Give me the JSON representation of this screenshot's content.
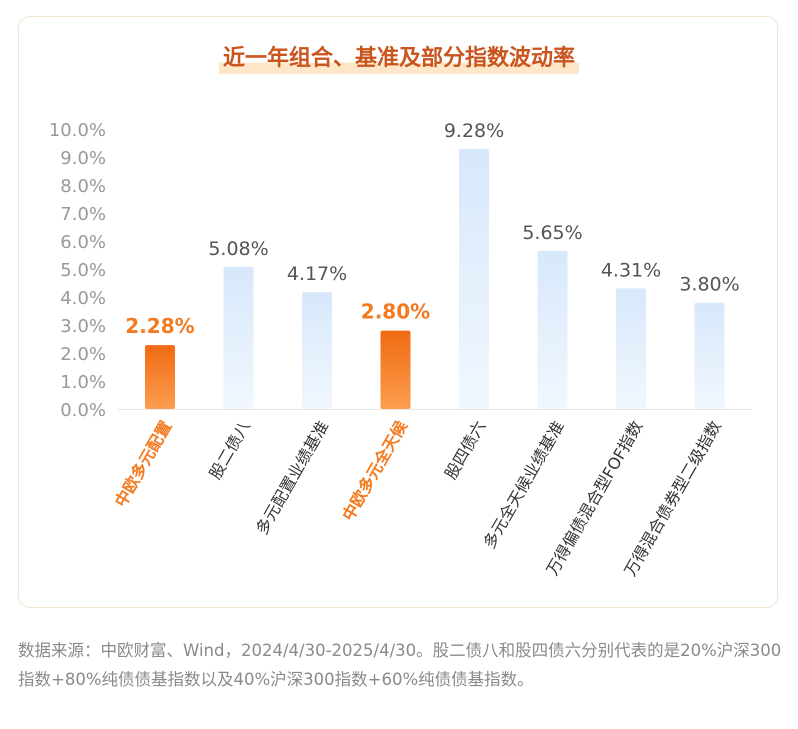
{
  "chart_data": {
    "type": "bar",
    "title": "近一年组合、基准及部分指数波动率",
    "categories": [
      "中欧多元配置",
      "股二债八",
      "多元配置业绩基准",
      "中欧多元全天候",
      "股四债六",
      "多元全天候业绩基准",
      "万得偏债混合型FOF指数",
      "万得混合债券型二级指数"
    ],
    "values": [
      2.28,
      5.08,
      4.17,
      2.8,
      9.28,
      5.65,
      4.31,
      3.8
    ],
    "value_labels": [
      "2.28%",
      "5.08%",
      "4.17%",
      "2.80%",
      "9.28%",
      "5.65%",
      "4.31%",
      "3.80%"
    ],
    "highlight": [
      true,
      false,
      false,
      true,
      false,
      false,
      false,
      false
    ],
    "yticks": [
      "0.0%",
      "1.0%",
      "2.0%",
      "3.0%",
      "4.0%",
      "5.0%",
      "6.0%",
      "7.0%",
      "8.0%",
      "9.0%",
      "10.0%"
    ],
    "ylim": [
      0,
      10
    ],
    "grid": false,
    "xlabel": "",
    "ylabel": "",
    "colors": {
      "highlight_bar": "#f47a20",
      "highlight_text": "#f47a20",
      "normal_bar": "#dcebfb",
      "normal_text": "#555555",
      "axis_text": "#999999",
      "title": "#c9541c"
    }
  },
  "footnote": "数据来源：中欧财富、Wind，2024/4/30-2025/4/30。股二债八和股四债六分别代表的是20%沪深300指数+80%纯债债基指数以及40%沪深300指数+60%纯债债基指数。"
}
